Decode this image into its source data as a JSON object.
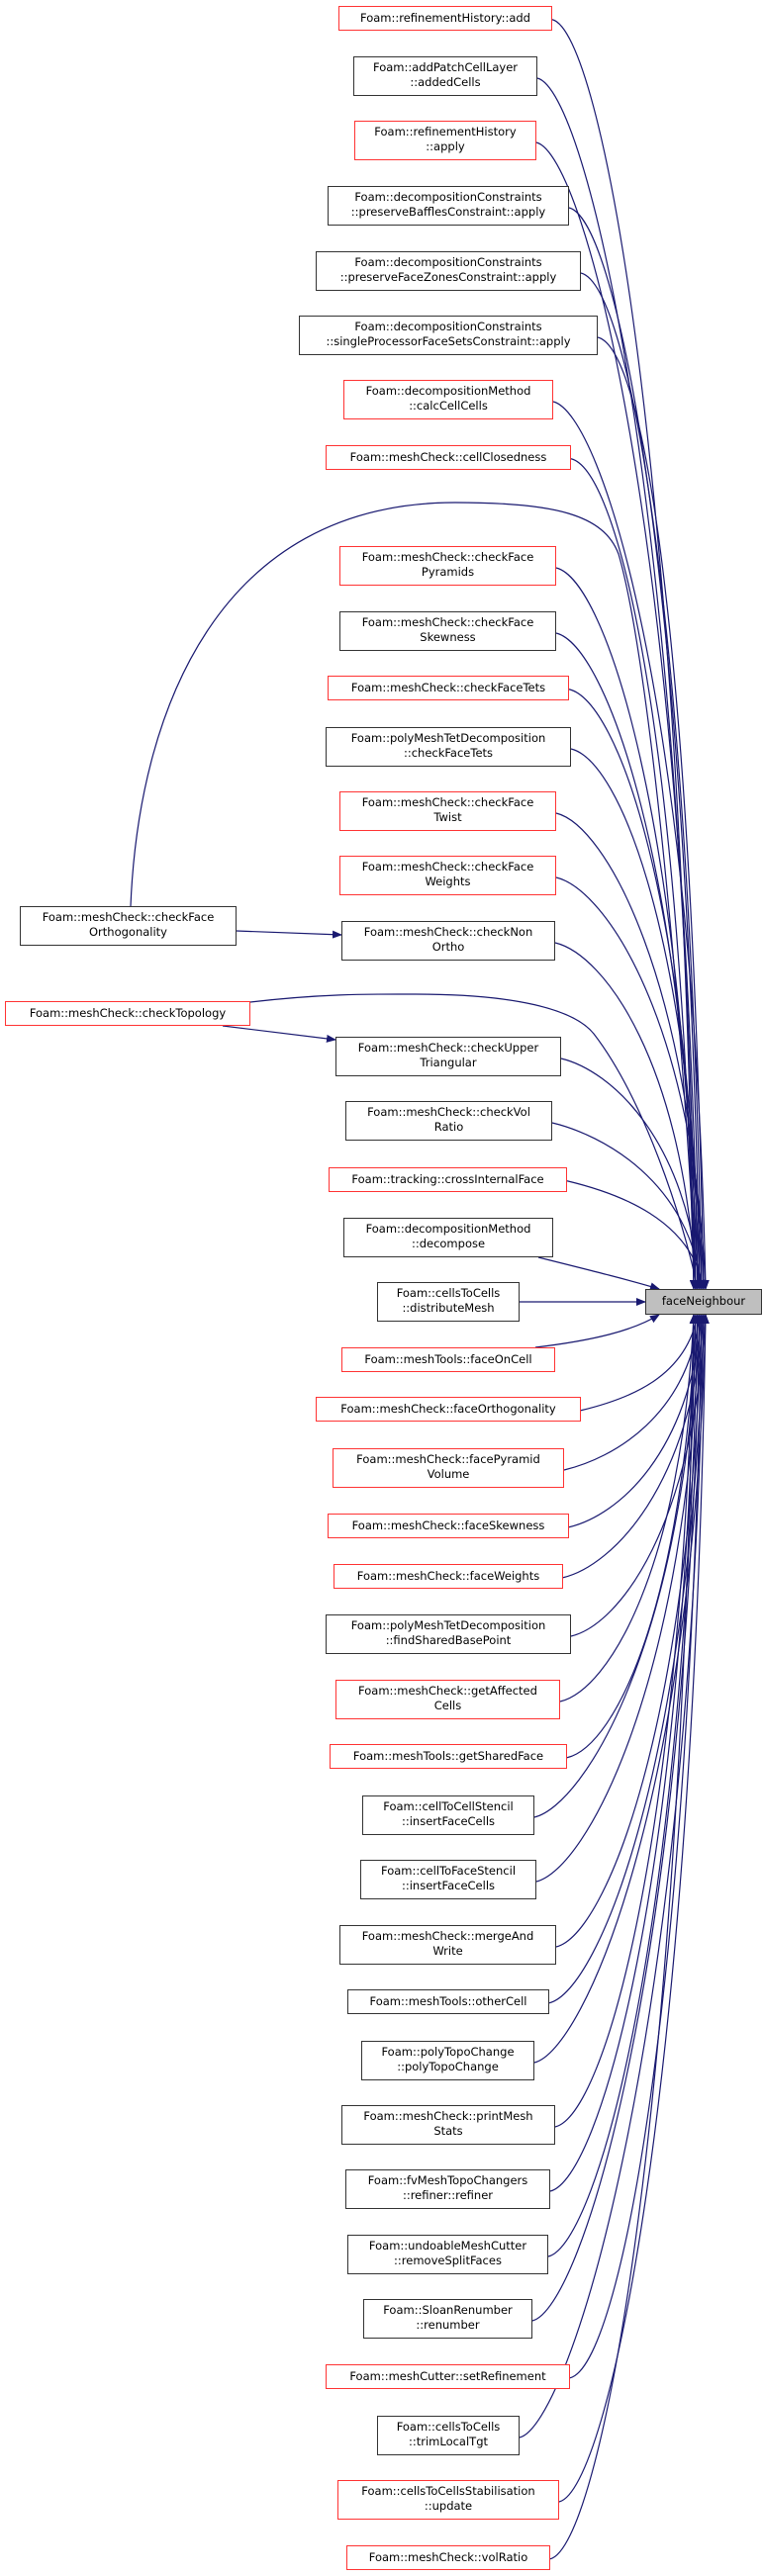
{
  "colors": {
    "edge": "#191970",
    "red_border": "#ff3333",
    "black_border": "#333333",
    "target_fill": "#bfbfbf"
  },
  "target": {
    "label": [
      "faceNeighbour"
    ]
  },
  "nodes": [
    {
      "label": [
        "Foam::refinementHistory::add"
      ],
      "border": "red"
    },
    {
      "label": [
        "Foam::addPatchCellLayer",
        "::addedCells"
      ],
      "border": "black"
    },
    {
      "label": [
        "Foam::refinementHistory",
        "::apply"
      ],
      "border": "red"
    },
    {
      "label": [
        "Foam::decompositionConstraints",
        "::preserveBafflesConstraint::apply"
      ],
      "border": "black"
    },
    {
      "label": [
        "Foam::decompositionConstraints",
        "::preserveFaceZonesConstraint::apply"
      ],
      "border": "black"
    },
    {
      "label": [
        "Foam::decompositionConstraints",
        "::singleProcessorFaceSetsConstraint::apply"
      ],
      "border": "black"
    },
    {
      "label": [
        "Foam::decompositionMethod",
        "::calcCellCells"
      ],
      "border": "red"
    },
    {
      "label": [
        "Foam::meshCheck::cellClosedness"
      ],
      "border": "red"
    },
    {
      "label": [
        "Foam::meshCheck::checkFace",
        "Pyramids"
      ],
      "border": "red"
    },
    {
      "label": [
        "Foam::meshCheck::checkFace",
        "Skewness"
      ],
      "border": "black"
    },
    {
      "label": [
        "Foam::meshCheck::checkFaceTets"
      ],
      "border": "red"
    },
    {
      "label": [
        "Foam::polyMeshTetDecomposition",
        "::checkFaceTets"
      ],
      "border": "black"
    },
    {
      "label": [
        "Foam::meshCheck::checkFace",
        "Twist"
      ],
      "border": "red"
    },
    {
      "label": [
        "Foam::meshCheck::checkFace",
        "Weights"
      ],
      "border": "red"
    },
    {
      "label": [
        "Foam::meshCheck::checkFace",
        "Orthogonality"
      ],
      "border": "black"
    },
    {
      "label": [
        "Foam::meshCheck::checkNon",
        "Ortho"
      ],
      "border": "black"
    },
    {
      "label": [
        "Foam::meshCheck::checkTopology"
      ],
      "border": "red"
    },
    {
      "label": [
        "Foam::meshCheck::checkUpper",
        "Triangular"
      ],
      "border": "black"
    },
    {
      "label": [
        "Foam::meshCheck::checkVol",
        "Ratio"
      ],
      "border": "black"
    },
    {
      "label": [
        "Foam::tracking::crossInternalFace"
      ],
      "border": "red"
    },
    {
      "label": [
        "Foam::decompositionMethod",
        "::decompose"
      ],
      "border": "black"
    },
    {
      "label": [
        "Foam::cellsToCells",
        "::distributeMesh"
      ],
      "border": "black"
    },
    {
      "label": [
        "Foam::meshTools::faceOnCell"
      ],
      "border": "red"
    },
    {
      "label": [
        "Foam::meshCheck::faceOrthogonality"
      ],
      "border": "red"
    },
    {
      "label": [
        "Foam::meshCheck::facePyramid",
        "Volume"
      ],
      "border": "red"
    },
    {
      "label": [
        "Foam::meshCheck::faceSkewness"
      ],
      "border": "red"
    },
    {
      "label": [
        "Foam::meshCheck::faceWeights"
      ],
      "border": "red"
    },
    {
      "label": [
        "Foam::polyMeshTetDecomposition",
        "::findSharedBasePoint"
      ],
      "border": "black"
    },
    {
      "label": [
        "Foam::meshCheck::getAffected",
        "Cells"
      ],
      "border": "red"
    },
    {
      "label": [
        "Foam::meshTools::getSharedFace"
      ],
      "border": "red"
    },
    {
      "label": [
        "Foam::cellToCellStencil",
        "::insertFaceCells"
      ],
      "border": "black"
    },
    {
      "label": [
        "Foam::cellToFaceStencil",
        "::insertFaceCells"
      ],
      "border": "black"
    },
    {
      "label": [
        "Foam::meshCheck::mergeAnd",
        "Write"
      ],
      "border": "black"
    },
    {
      "label": [
        "Foam::meshTools::otherCell"
      ],
      "border": "black"
    },
    {
      "label": [
        "Foam::polyTopoChange",
        "::polyTopoChange"
      ],
      "border": "black"
    },
    {
      "label": [
        "Foam::meshCheck::printMesh",
        "Stats"
      ],
      "border": "black"
    },
    {
      "label": [
        "Foam::fvMeshTopoChangers",
        "::refiner::refiner"
      ],
      "border": "black"
    },
    {
      "label": [
        "Foam::undoableMeshCutter",
        "::removeSplitFaces"
      ],
      "border": "black"
    },
    {
      "label": [
        "Foam::SloanRenumber",
        "::renumber"
      ],
      "border": "black"
    },
    {
      "label": [
        "Foam::meshCutter::setRefinement"
      ],
      "border": "red"
    },
    {
      "label": [
        "Foam::cellsToCells",
        "::trimLocalTgt"
      ],
      "border": "black"
    },
    {
      "label": [
        "Foam::cellsToCellsStabilisation",
        "::update"
      ],
      "border": "red"
    },
    {
      "label": [
        "Foam::meshCheck::volRatio"
      ],
      "border": "red"
    }
  ],
  "extra_edges": [
    [
      14,
      15
    ],
    [
      16,
      17
    ]
  ]
}
